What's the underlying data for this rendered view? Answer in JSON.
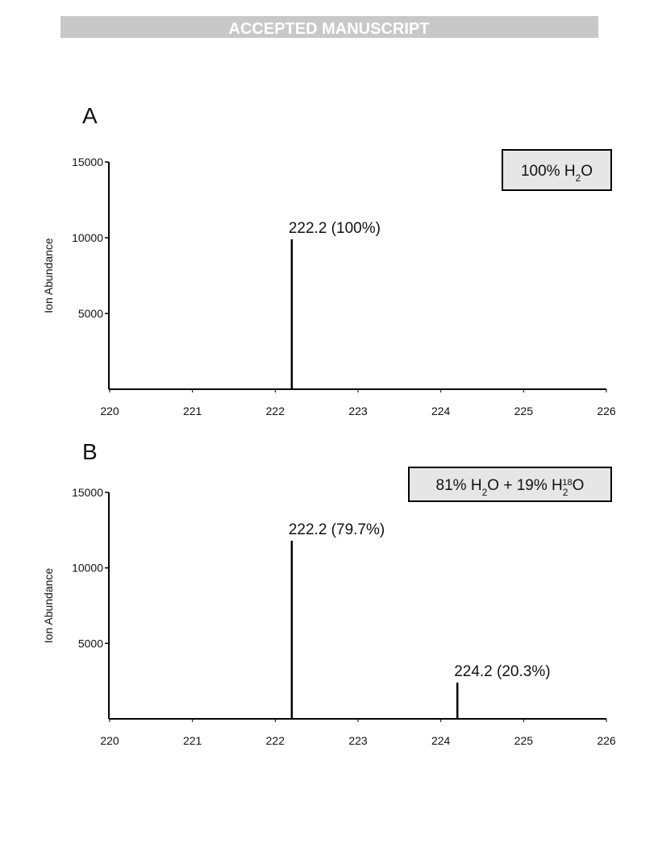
{
  "header": {
    "banner": "ACCEPTED MANUSCRIPT"
  },
  "chart_data": [
    {
      "type": "bar",
      "panel_label": "A",
      "y_label": "Ion Abundance",
      "x": [
        222.2
      ],
      "values": [
        9900
      ],
      "annotations": [
        "222.2 (100%)"
      ],
      "legend_box": [
        {
          "text": "100% H"
        },
        {
          "sub": "2"
        },
        {
          "text": "O"
        }
      ],
      "color": "#000000",
      "xlim": [
        220,
        226
      ],
      "xticks": [
        220,
        221,
        222,
        223,
        224,
        225,
        226
      ],
      "ylim": [
        0,
        15000
      ],
      "yticks": [
        5000,
        10000,
        15000
      ]
    },
    {
      "type": "bar",
      "panel_label": "B",
      "y_label": "Ion Abundance",
      "x": [
        222.2,
        224.2
      ],
      "values": [
        11800,
        2400
      ],
      "annotations": [
        "222.2 (79.7%)",
        "224.2 (20.3%)"
      ],
      "legend_box": [
        {
          "text": "81% H"
        },
        {
          "sub": "2"
        },
        {
          "text": "O + 19% H"
        },
        {
          "sub": "2"
        },
        {
          "sup": "18"
        },
        {
          "text": "O"
        }
      ],
      "color": "#000000",
      "xlim": [
        220,
        226
      ],
      "xticks": [
        220,
        221,
        222,
        223,
        224,
        225,
        226
      ],
      "ylim": [
        0,
        15000
      ],
      "yticks": [
        5000,
        10000,
        15000
      ]
    }
  ]
}
